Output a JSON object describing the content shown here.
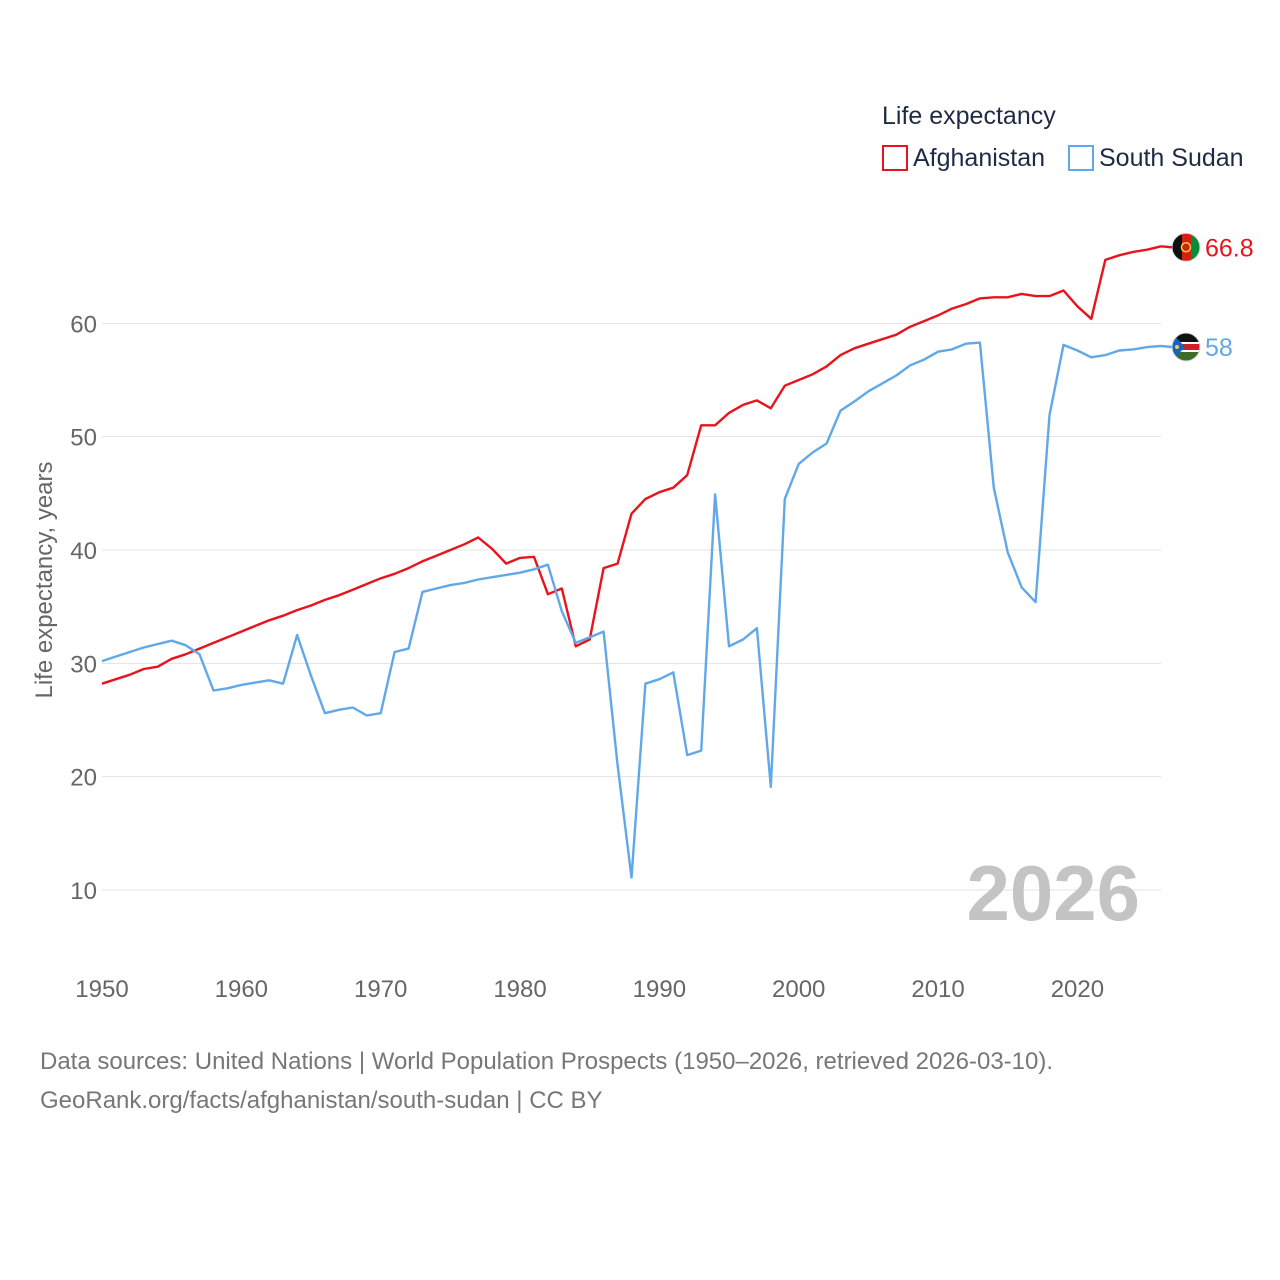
{
  "chart_data": {
    "type": "line",
    "legend_title": "Life expectancy",
    "ylabel": "Life expectancy, years",
    "xlabel": "",
    "xlim": [
      1950,
      2026
    ],
    "ylim": [
      4,
      70
    ],
    "x_ticks": [
      1950,
      1960,
      1970,
      1980,
      1990,
      2000,
      2010,
      2020
    ],
    "y_ticks": [
      10,
      20,
      30,
      40,
      50,
      60
    ],
    "legend_position": "top-right",
    "year_label": "2026",
    "series": [
      {
        "name": "Afghanistan",
        "color": "#e8141b",
        "end_label": "66.8",
        "flag": "afghanistan-flag-icon",
        "x": [
          1950,
          1951,
          1952,
          1953,
          1954,
          1955,
          1956,
          1957,
          1958,
          1959,
          1960,
          1961,
          1962,
          1963,
          1964,
          1965,
          1966,
          1967,
          1968,
          1969,
          1970,
          1971,
          1972,
          1973,
          1974,
          1975,
          1976,
          1977,
          1978,
          1979,
          1980,
          1981,
          1982,
          1983,
          1984,
          1985,
          1986,
          1987,
          1988,
          1989,
          1990,
          1991,
          1992,
          1993,
          1994,
          1995,
          1996,
          1997,
          1998,
          1999,
          2000,
          2001,
          2002,
          2003,
          2004,
          2005,
          2006,
          2007,
          2008,
          2009,
          2010,
          2011,
          2012,
          2013,
          2014,
          2015,
          2016,
          2017,
          2018,
          2019,
          2020,
          2021,
          2022,
          2023,
          2024,
          2025,
          2026
        ],
        "values": [
          28.2,
          28.6,
          29.0,
          29.5,
          29.7,
          30.4,
          30.8,
          31.3,
          31.8,
          32.3,
          32.8,
          33.3,
          33.8,
          34.2,
          34.7,
          35.1,
          35.6,
          36.0,
          36.5,
          37.0,
          37.5,
          37.9,
          38.4,
          39.0,
          39.5,
          40.0,
          40.5,
          41.1,
          40.1,
          38.8,
          39.3,
          39.4,
          36.1,
          36.6,
          31.5,
          32.1,
          38.4,
          38.8,
          43.2,
          44.5,
          45.1,
          45.5,
          46.6,
          51.0,
          51.0,
          52.1,
          52.8,
          53.2,
          52.5,
          54.5,
          55.0,
          55.5,
          56.2,
          57.2,
          57.8,
          58.2,
          58.6,
          59.0,
          59.7,
          60.2,
          60.7,
          61.3,
          61.7,
          62.2,
          62.3,
          62.3,
          62.6,
          62.4,
          62.4,
          62.9,
          61.5,
          60.4,
          65.6,
          66.0,
          66.3,
          66.5,
          66.8
        ]
      },
      {
        "name": "South Sudan",
        "color": "#61a8e8",
        "end_label": "58",
        "flag": "south-sudan-flag-icon",
        "x": [
          1950,
          1951,
          1952,
          1953,
          1954,
          1955,
          1956,
          1957,
          1958,
          1959,
          1960,
          1961,
          1962,
          1963,
          1964,
          1965,
          1966,
          1967,
          1968,
          1969,
          1970,
          1971,
          1972,
          1973,
          1974,
          1975,
          1976,
          1977,
          1978,
          1979,
          1980,
          1981,
          1982,
          1983,
          1984,
          1985,
          1986,
          1987,
          1988,
          1989,
          1990,
          1991,
          1992,
          1993,
          1994,
          1995,
          1996,
          1997,
          1998,
          1999,
          2000,
          2001,
          2002,
          2003,
          2004,
          2005,
          2006,
          2007,
          2008,
          2009,
          2010,
          2011,
          2012,
          2013,
          2014,
          2015,
          2016,
          2017,
          2018,
          2019,
          2020,
          2021,
          2022,
          2023,
          2024,
          2025,
          2026
        ],
        "values": [
          30.2,
          30.6,
          31.0,
          31.4,
          31.7,
          32.0,
          31.6,
          30.8,
          27.6,
          27.8,
          28.1,
          28.3,
          28.5,
          28.2,
          32.5,
          28.9,
          25.6,
          25.9,
          26.1,
          25.4,
          25.6,
          31.0,
          31.3,
          36.3,
          36.6,
          36.9,
          37.1,
          37.4,
          37.6,
          37.8,
          38.0,
          38.3,
          38.7,
          34.6,
          31.8,
          32.3,
          32.8,
          21.0,
          11.1,
          28.2,
          28.6,
          29.2,
          21.9,
          22.3,
          44.9,
          31.5,
          32.1,
          33.1,
          19.1,
          44.5,
          47.6,
          48.6,
          49.4,
          52.3,
          53.1,
          54.0,
          54.7,
          55.4,
          56.3,
          56.8,
          57.5,
          57.7,
          58.2,
          58.3,
          45.5,
          39.8,
          36.7,
          35.4,
          51.9,
          58.1,
          57.6,
          57.0,
          57.2,
          57.6,
          57.7,
          57.9,
          58.0
        ]
      }
    ],
    "source_line1": "Data sources: United Nations | World Population Prospects (1950–2026, retrieved 2026-03-10).",
    "source_line2": "GeoRank.org/facts/afghanistan/south-sudan | CC BY"
  }
}
